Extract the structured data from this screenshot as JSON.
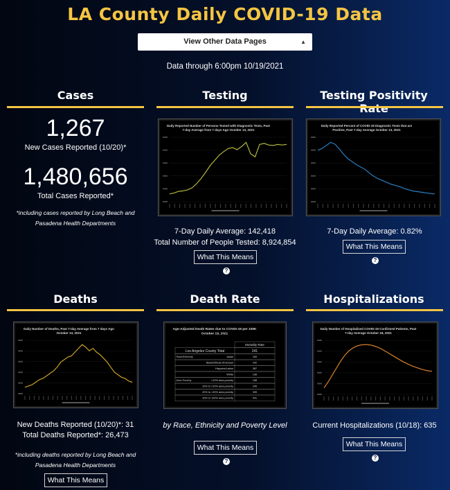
{
  "header": {
    "title": "LA County Daily COVID-19 Data",
    "dropdown_label": "View Other Data Pages",
    "data_through": "Data through 6:00pm 10/19/2021"
  },
  "colors": {
    "accent": "#f5c542",
    "testing_line": "#b5b73a",
    "positivity_line": "#2a7fc1",
    "deaths_line": "#c9a227",
    "hosp_line": "#d9822b"
  },
  "cases": {
    "title": "Cases",
    "new_count": "1,267",
    "new_label": "New Cases Reported (10/20)*",
    "total_count": "1,480,656",
    "total_label": "Total Cases Reported*",
    "note": "*including cases reported by Long Beach and Pasadena Health Departments"
  },
  "testing": {
    "title": "Testing",
    "chart_title": "Daily Reported Number of Persons Tested with Diagnostic Tests, Past 7-day Average from 7 days Ago October 13, 2021",
    "avg": "7-Day Daily Average: 142,418",
    "total": "Total Number of People Tested: 8,924,854",
    "button": "What This Means"
  },
  "positivity": {
    "title": "Testing Positivity Rate",
    "chart_title": "Daily Reported Percent of COVID-19 Diagnostic Tests that are Positive, Past 7-day Average October 13, 2021",
    "avg": "7-Day Daily Average: 0.82%",
    "button": "What This Means"
  },
  "deaths": {
    "title": "Deaths",
    "chart_title": "Daily Number of Deaths, Past 7-day Average from 7 days Ago October 13, 2021",
    "new": "New Deaths Reported (10/20)*: 31",
    "total": "Total Deaths Reported*: 26,473",
    "note": "*including deaths reported by Long Beach and Pasadena Health Departments",
    "button": "What This Means"
  },
  "death_rate": {
    "title": "Death Rate",
    "table_title": "Age-Adjusted Death Rates due to COVID-19 per 100K October 19, 2021",
    "col_header": "Mortality Rate",
    "rows": [
      {
        "group": "",
        "label": "Los Angeles County Total",
        "value": "241"
      },
      {
        "group": "Race/Ethnicity",
        "label": "Asian",
        "value": "169"
      },
      {
        "group": "",
        "label": "Black/African American",
        "value": "242"
      },
      {
        "group": "",
        "label": "Hispanic/Latino",
        "value": "387"
      },
      {
        "group": "",
        "label": "White",
        "value": "138"
      },
      {
        "group": "Area Poverty",
        "label": "<10% area poverty",
        "value": "158"
      },
      {
        "group": "",
        "label": "10% to <20% area poverty",
        "value": "249"
      },
      {
        "group": "",
        "label": "20% to <30% area poverty",
        "value": "339"
      },
      {
        "group": "",
        "label": "30% to 100% area poverty",
        "value": "441"
      }
    ],
    "caption": "by Race, Ethnicity and Poverty Level",
    "button": "What This Means"
  },
  "hospitalizations": {
    "title": "Hospitalizations",
    "chart_title": "Daily Number of Hospitalized COVID-19 Confirmed Patients, Past 7-day Average October 18, 2021",
    "current": "Current Hospitalizations (10/18): 635",
    "button": "What This Means"
  },
  "chart_data": [
    {
      "type": "line",
      "title": "Daily Reported Number of Persons Tested with Diagnostic Tests, Past 7-day Average from 7 days Ago October 13, 2021",
      "series": [
        {
          "values": [
            40,
            42,
            45,
            46,
            48,
            52,
            60,
            70,
            82,
            95,
            105,
            115,
            122,
            128,
            130,
            126,
            132,
            140,
            118,
            112,
            136,
            138,
            135,
            134,
            136,
            135,
            136
          ]
        }
      ]
    },
    {
      "type": "line",
      "title": "Daily Reported Percent of COVID-19 Diagnostic Tests that are Positive, Past 7-day Average October 13, 2021",
      "series": [
        {
          "values": [
            8.0,
            8.3,
            8.8,
            9.3,
            9.0,
            8.2,
            7.3,
            6.6,
            6.1,
            5.6,
            5.2,
            4.8,
            4.2,
            3.7,
            3.3,
            3.0,
            2.7,
            2.4,
            2.2,
            2.0,
            1.7,
            1.5,
            1.3,
            1.2,
            1.1,
            1.0,
            0.9,
            0.82
          ]
        }
      ]
    },
    {
      "type": "line",
      "title": "Daily Number of Deaths, Past 7-day Average from 7 days Ago October 13, 2021",
      "series": [
        {
          "values": [
            2,
            3,
            4,
            6,
            8,
            9,
            11,
            13,
            15,
            18,
            22,
            24,
            26,
            27,
            30,
            33,
            36,
            34,
            31,
            33,
            30,
            28,
            25,
            22,
            18,
            14,
            12,
            10,
            9,
            7,
            6
          ]
        }
      ]
    },
    {
      "type": "line",
      "title": "Daily Number of Hospitalized COVID-19 Confirmed Patients, Past 7-day Average October 18, 2021",
      "series": [
        {
          "values": [
            300,
            420,
            560,
            700,
            840,
            960,
            1050,
            1110,
            1150,
            1170,
            1175,
            1170,
            1150,
            1120,
            1080,
            1030,
            980,
            930,
            880,
            830,
            790,
            750,
            720,
            690,
            665,
            645,
            635
          ]
        }
      ]
    }
  ]
}
